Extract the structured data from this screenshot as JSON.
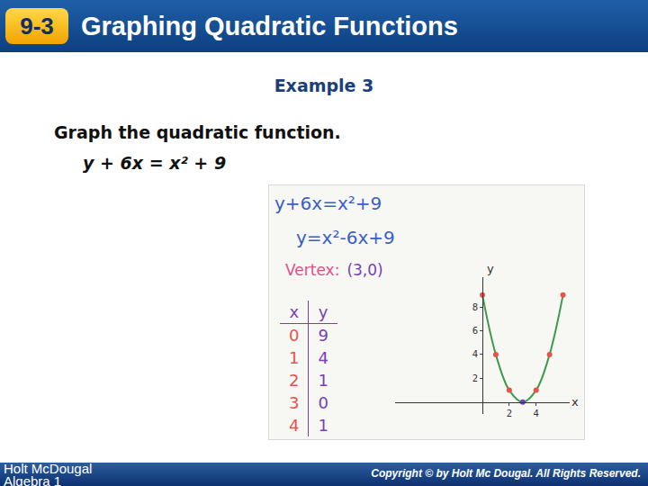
{
  "header": {
    "number": "9-3",
    "title": "Graphing Quadratic Functions"
  },
  "example": "Example 3",
  "instruction": "Graph the quadratic function.",
  "equation": "y + 6x = x² + 9",
  "work": {
    "lines": [
      "y+6x=x²+9",
      "y=x²-6x+9"
    ],
    "vertex": {
      "label": "Vertex:",
      "value": "(3,0)"
    }
  },
  "table": {
    "header": [
      "x",
      "y"
    ],
    "rows": [
      [
        0,
        9
      ],
      [
        1,
        4
      ],
      [
        2,
        1
      ],
      [
        3,
        0
      ],
      [
        4,
        1
      ]
    ]
  },
  "chart_data": {
    "type": "line",
    "x_label": "x",
    "y_label": "y",
    "x": [
      0,
      1,
      2,
      3,
      4,
      5,
      6
    ],
    "values": [
      9,
      4,
      1,
      0,
      1,
      4,
      9
    ],
    "color": "#3f9a4a",
    "colors": [
      "#e5534b",
      "#e5534b",
      "#e5534b",
      "#6a3fc0",
      "#e5534b",
      "#e5534b",
      "#e5534b"
    ],
    "marker": "circle",
    "line_style": "solid",
    "xlim": [
      -6.5,
      6.5
    ],
    "ylim": [
      -1,
      10.5
    ],
    "xticks": [
      2,
      4
    ],
    "yticks": [
      2,
      4,
      6,
      8
    ],
    "grid": false
  },
  "footer": {
    "publisher": "Holt McDougal",
    "course": "Algebra 1",
    "copyright": "Copyright © by Holt Mc Dougal. All Rights Reserved."
  }
}
